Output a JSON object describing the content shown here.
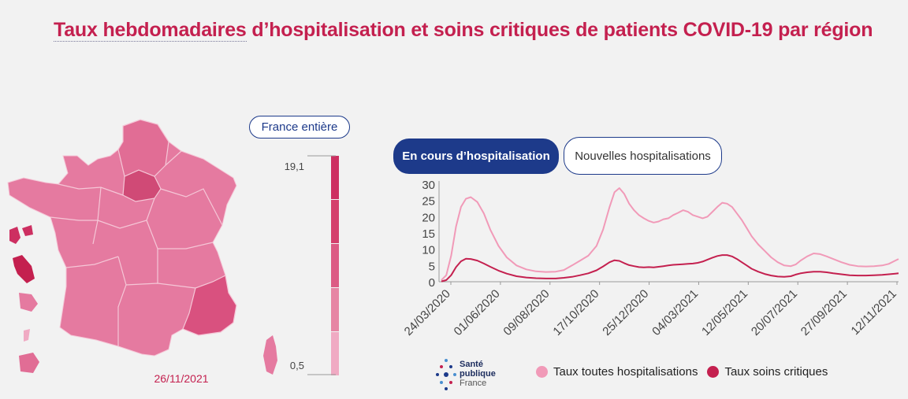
{
  "title_part1": "Taux hebdomadaires",
  "title_part2": " d’hospitalisation et soins critiques de patients COVID-19 par région",
  "map": {
    "date": "26/11/2021"
  },
  "buttons": {
    "france": "France entière",
    "en_cours": "En cours d’hospitalisation",
    "nouvelles": "Nouvelles hospitalisations"
  },
  "scale": {
    "max_label": "19,1",
    "min_label": "0,5",
    "colors": [
      "#cd2f61",
      "#d43f6c",
      "#dc5b84",
      "#e685a4",
      "#f0aac3"
    ]
  },
  "logo": {
    "line1": "Santé",
    "line2": "publique",
    "line3": "France"
  },
  "colors": {
    "hosp": "#f19ab8",
    "crit": "#c4204f",
    "accent": "#1d3a8a"
  },
  "chart_data": {
    "type": "line",
    "ylim": [
      0,
      30
    ],
    "yticks": [
      0,
      5,
      10,
      15,
      20,
      25,
      30
    ],
    "xtick_labels": [
      "24/03/2020",
      "01/06/2020",
      "09/08/2020",
      "17/10/2020",
      "25/12/2020",
      "04/03/2021",
      "12/05/2021",
      "20/07/2021",
      "27/09/2021",
      "12/11/2021"
    ],
    "legend": [
      "Taux toutes hospitalisations",
      "Taux soins critiques"
    ],
    "series": [
      {
        "name": "Taux toutes hospitalisations",
        "values": [
          [
            0,
            0.5
          ],
          [
            3,
            2
          ],
          [
            6,
            8
          ],
          [
            9,
            17
          ],
          [
            12,
            23
          ],
          [
            15,
            25.5
          ],
          [
            18,
            26
          ],
          [
            22,
            24.5
          ],
          [
            26,
            21
          ],
          [
            30,
            16
          ],
          [
            35,
            11
          ],
          [
            40,
            7.5
          ],
          [
            46,
            5
          ],
          [
            52,
            3.8
          ],
          [
            58,
            3.2
          ],
          [
            64,
            3
          ],
          [
            70,
            3.1
          ],
          [
            75,
            3.6
          ],
          [
            80,
            5
          ],
          [
            85,
            6.5
          ],
          [
            90,
            8
          ],
          [
            95,
            11
          ],
          [
            99,
            16
          ],
          [
            103,
            23
          ],
          [
            106,
            27.5
          ],
          [
            109,
            28.8
          ],
          [
            112,
            27
          ],
          [
            115,
            24
          ],
          [
            118,
            22
          ],
          [
            121,
            20.5
          ],
          [
            124,
            19.5
          ],
          [
            127,
            18.7
          ],
          [
            130,
            18.2
          ],
          [
            133,
            18.5
          ],
          [
            136,
            19.2
          ],
          [
            139,
            19.5
          ],
          [
            142,
            20.5
          ],
          [
            145,
            21.2
          ],
          [
            148,
            22
          ],
          [
            151,
            21.5
          ],
          [
            154,
            20.5
          ],
          [
            157,
            20
          ],
          [
            160,
            19.5
          ],
          [
            163,
            20
          ],
          [
            166,
            21.5
          ],
          [
            169,
            23
          ],
          [
            172,
            24.3
          ],
          [
            175,
            24
          ],
          [
            178,
            23
          ],
          [
            181,
            21
          ],
          [
            184,
            19
          ],
          [
            187,
            16.5
          ],
          [
            190,
            14
          ],
          [
            194,
            11.5
          ],
          [
            198,
            9.5
          ],
          [
            202,
            7.5
          ],
          [
            206,
            6
          ],
          [
            210,
            5
          ],
          [
            214,
            4.8
          ],
          [
            217,
            5.3
          ],
          [
            220,
            6.5
          ],
          [
            224,
            7.8
          ],
          [
            228,
            8.7
          ],
          [
            232,
            8.5
          ],
          [
            236,
            7.8
          ],
          [
            240,
            7
          ],
          [
            245,
            6
          ],
          [
            250,
            5.2
          ],
          [
            255,
            4.8
          ],
          [
            260,
            4.7
          ],
          [
            265,
            4.8
          ],
          [
            270,
            5
          ],
          [
            274,
            5.5
          ],
          [
            278,
            6.5
          ],
          [
            280,
            7
          ]
        ]
      },
      {
        "name": "Taux soins critiques",
        "values": [
          [
            0,
            0.1
          ],
          [
            3,
            0.5
          ],
          [
            6,
            2
          ],
          [
            9,
            4.5
          ],
          [
            12,
            6.3
          ],
          [
            15,
            7.1
          ],
          [
            18,
            7
          ],
          [
            22,
            6.5
          ],
          [
            26,
            5.6
          ],
          [
            30,
            4.6
          ],
          [
            35,
            3.4
          ],
          [
            40,
            2.5
          ],
          [
            46,
            1.7
          ],
          [
            52,
            1.3
          ],
          [
            58,
            1.1
          ],
          [
            64,
            1
          ],
          [
            70,
            1
          ],
          [
            75,
            1.2
          ],
          [
            80,
            1.5
          ],
          [
            85,
            2
          ],
          [
            90,
            2.6
          ],
          [
            95,
            3.5
          ],
          [
            99,
            4.7
          ],
          [
            103,
            6
          ],
          [
            106,
            6.6
          ],
          [
            109,
            6.4
          ],
          [
            112,
            5.7
          ],
          [
            115,
            5.1
          ],
          [
            118,
            4.8
          ],
          [
            121,
            4.5
          ],
          [
            124,
            4.4
          ],
          [
            127,
            4.5
          ],
          [
            130,
            4.4
          ],
          [
            133,
            4.6
          ],
          [
            136,
            4.8
          ],
          [
            139,
            5
          ],
          [
            142,
            5.2
          ],
          [
            145,
            5.3
          ],
          [
            148,
            5.4
          ],
          [
            151,
            5.5
          ],
          [
            154,
            5.6
          ],
          [
            157,
            5.8
          ],
          [
            160,
            6.2
          ],
          [
            163,
            6.8
          ],
          [
            166,
            7.4
          ],
          [
            169,
            7.9
          ],
          [
            172,
            8.2
          ],
          [
            175,
            8.2
          ],
          [
            178,
            7.8
          ],
          [
            181,
            7
          ],
          [
            184,
            6
          ],
          [
            187,
            5
          ],
          [
            190,
            4
          ],
          [
            194,
            3.1
          ],
          [
            198,
            2.4
          ],
          [
            202,
            1.9
          ],
          [
            206,
            1.6
          ],
          [
            210,
            1.5
          ],
          [
            214,
            1.7
          ],
          [
            217,
            2.2
          ],
          [
            220,
            2.6
          ],
          [
            224,
            2.9
          ],
          [
            228,
            3.1
          ],
          [
            232,
            3.1
          ],
          [
            236,
            2.9
          ],
          [
            240,
            2.6
          ],
          [
            245,
            2.3
          ],
          [
            250,
            2
          ],
          [
            255,
            1.9
          ],
          [
            260,
            1.9
          ],
          [
            265,
            2
          ],
          [
            270,
            2.1
          ],
          [
            274,
            2.3
          ],
          [
            278,
            2.5
          ],
          [
            280,
            2.6
          ]
        ]
      }
    ]
  }
}
